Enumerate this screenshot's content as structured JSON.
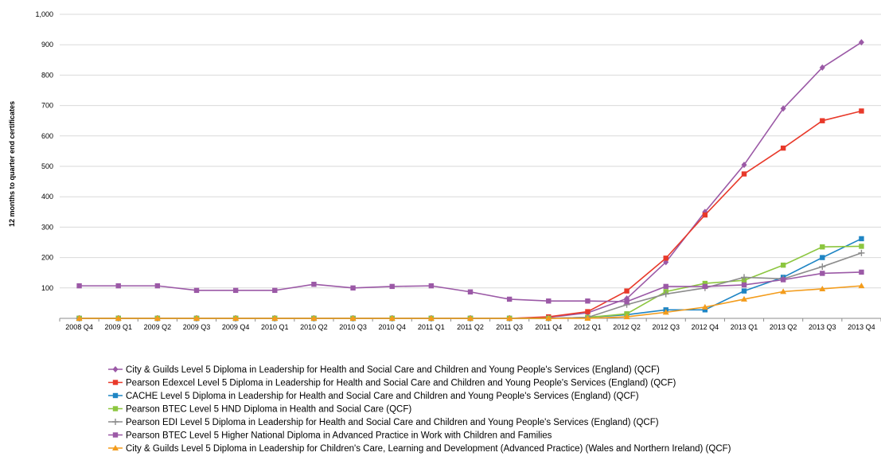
{
  "chart_data": {
    "type": "line",
    "title": "",
    "xlabel": "",
    "ylabel": "12 months to quarter end certificates",
    "ylim": [
      0,
      1000
    ],
    "yticks": [
      100,
      200,
      300,
      400,
      500,
      600,
      700,
      800,
      900,
      1000
    ],
    "ytick_labels": [
      "100",
      "200",
      "300",
      "400",
      "500",
      "600",
      "700",
      "800",
      "900",
      "1,000"
    ],
    "grid": "horizontal",
    "legend_position": "bottom",
    "categories": [
      "2008 Q4",
      "2009 Q1",
      "2009 Q2",
      "2009 Q3",
      "2009 Q4",
      "2010 Q1",
      "2010 Q2",
      "2010 Q3",
      "2010 Q4",
      "2011 Q1",
      "2011 Q2",
      "2011 Q3",
      "2011 Q4",
      "2012 Q1",
      "2012 Q2",
      "2012 Q3",
      "2012 Q4",
      "2013 Q1",
      "2013 Q2",
      "2013 Q3",
      "2013 Q4"
    ],
    "series": [
      {
        "name": "City & Guilds Level 5 Diploma in Leadership for Health and Social Care and Children and Young People's Services (England) (QCF)",
        "color": "#9b59a6",
        "marker": "diamond",
        "values": [
          0,
          0,
          0,
          0,
          0,
          0,
          0,
          0,
          0,
          0,
          0,
          0,
          3,
          18,
          65,
          185,
          350,
          505,
          690,
          825,
          908
        ]
      },
      {
        "name": "Pearson Edexcel Level 5 Diploma in Leadership for Health and Social Care and Children and Young People's Services (England) (QCF)",
        "color": "#e8392a",
        "marker": "square",
        "values": [
          0,
          0,
          0,
          0,
          0,
          0,
          0,
          0,
          0,
          0,
          0,
          0,
          5,
          22,
          90,
          198,
          340,
          475,
          560,
          650,
          682
        ]
      },
      {
        "name": "CACHE Level 5 Diploma in Leadership for Health and Social Care and Children and Young People's Services (England) (QCF)",
        "color": "#1f85c4",
        "marker": "square",
        "values": [
          0,
          0,
          0,
          0,
          0,
          0,
          0,
          0,
          0,
          0,
          0,
          0,
          0,
          3,
          12,
          28,
          28,
          90,
          135,
          200,
          262
        ]
      },
      {
        "name": "Pearson BTEC Level 5 HND Diploma in Health and Social Care (QCF)",
        "color": "#8cc63f",
        "marker": "square",
        "values": [
          0,
          0,
          0,
          0,
          0,
          0,
          0,
          0,
          0,
          0,
          0,
          0,
          0,
          3,
          15,
          88,
          115,
          125,
          175,
          235,
          237
        ]
      },
      {
        "name": "Pearson EDI Level 5 Diploma in Leadership for Health and Social Care and Children and Young People's Services (England) (QCF)",
        "color": "#8c8c8c",
        "marker": "plus",
        "values": [
          0,
          0,
          0,
          0,
          0,
          0,
          0,
          0,
          0,
          0,
          0,
          0,
          0,
          3,
          45,
          80,
          100,
          135,
          130,
          170,
          215
        ]
      },
      {
        "name": "Pearson BTEC Level 5 Higher National Diploma in Advanced Practice in Work with Children and Families",
        "color": "#9b59a6",
        "marker": "square",
        "values": [
          107,
          107,
          107,
          92,
          92,
          92,
          112,
          100,
          105,
          107,
          87,
          63,
          57,
          57,
          55,
          105,
          105,
          110,
          127,
          148,
          152
        ]
      },
      {
        "name": "City & Guilds Level 5 Diploma in Leadership for Children's Care, Learning and Development (Advanced Practice) (Wales and Northern Ireland) (QCF)",
        "color": "#f39c1c",
        "marker": "triangle",
        "values": [
          0,
          0,
          0,
          0,
          0,
          0,
          0,
          0,
          0,
          0,
          0,
          0,
          0,
          0,
          5,
          20,
          37,
          63,
          88,
          97,
          107
        ]
      }
    ]
  }
}
